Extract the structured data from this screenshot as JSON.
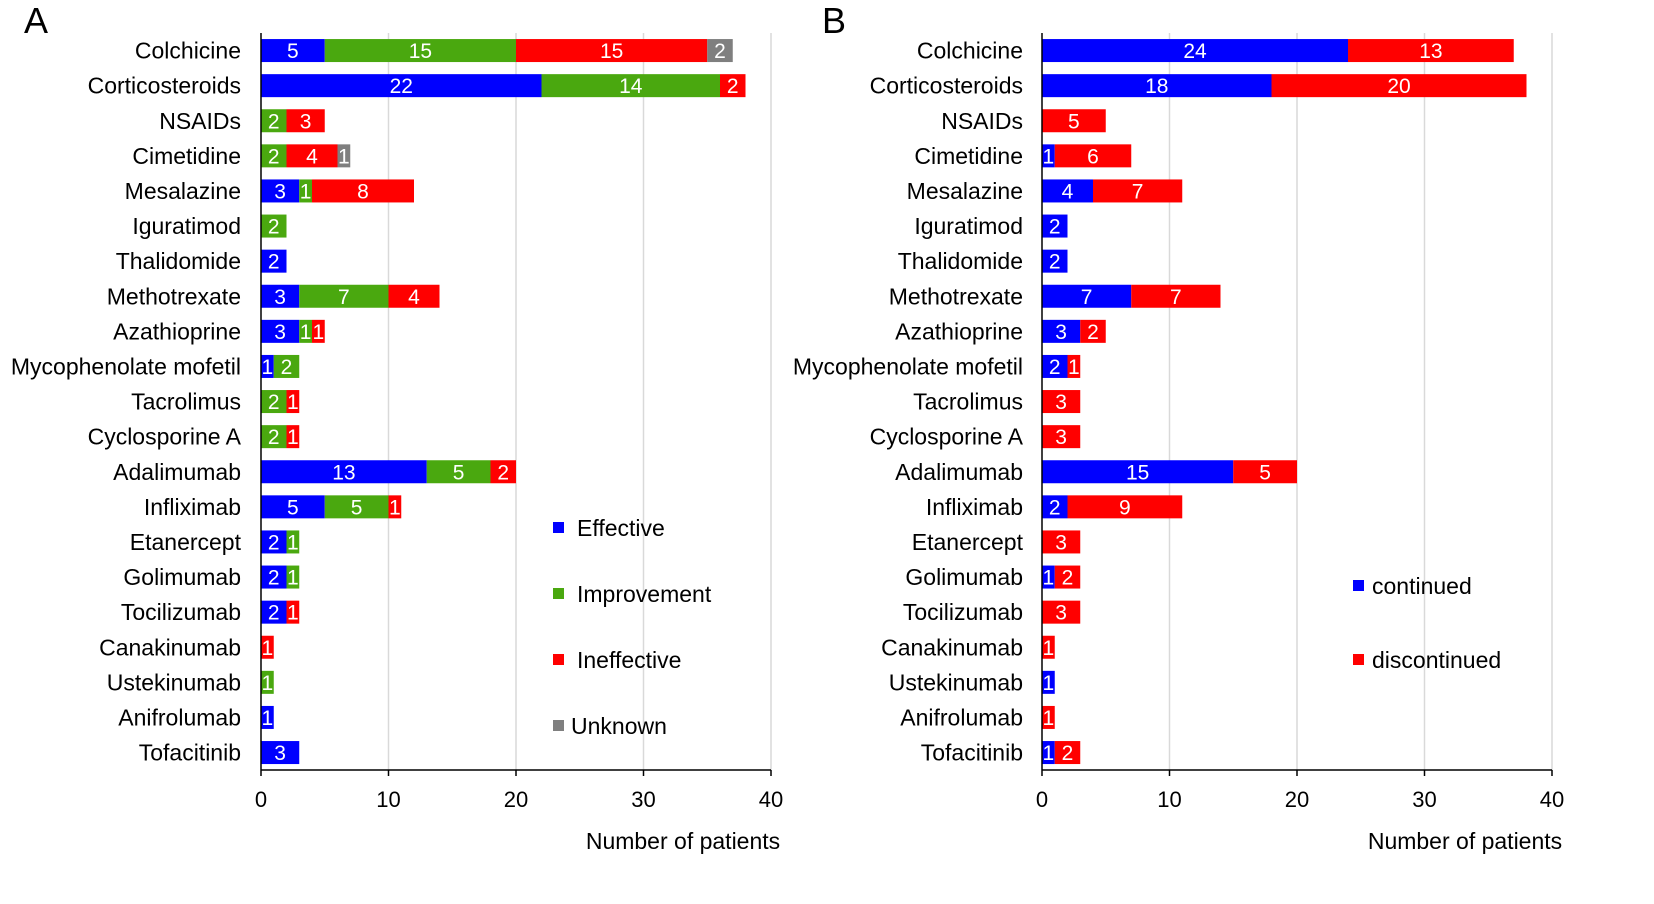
{
  "chart_data": [
    {
      "type": "bar",
      "orientation": "horizontal",
      "stacked": true,
      "panel_label": "A",
      "title": "",
      "xlabel": "Number of patients",
      "ylabel": "",
      "xlim": [
        0,
        40
      ],
      "xticks": [
        0,
        10,
        20,
        30,
        40
      ],
      "grid": true,
      "legend_position": "bottom-right",
      "categories": [
        "Colchicine",
        "Corticosteroids",
        "NSAIDs",
        "Cimetidine",
        "Mesalazine",
        "Iguratimod",
        "Thalidomide",
        "Methotrexate",
        "Azathioprine",
        "Mycophenolate mofetil",
        "Tacrolimus",
        "Cyclosporine A",
        "Adalimumab",
        "Infliximab",
        "Etanercept",
        "Golimumab",
        "Tocilizumab",
        "Canakinumab",
        "Ustekinumab",
        "Anifrolumab",
        "Tofacitinib"
      ],
      "series": [
        {
          "name": "Effective",
          "color": "#0000ff",
          "values": [
            5,
            22,
            0,
            0,
            3,
            0,
            2,
            3,
            3,
            1,
            0,
            0,
            13,
            5,
            2,
            2,
            2,
            0,
            0,
            1,
            3
          ]
        },
        {
          "name": "Improvement",
          "color": "#4aa80f",
          "values": [
            15,
            14,
            2,
            2,
            1,
            2,
            0,
            7,
            1,
            2,
            2,
            2,
            5,
            5,
            1,
            1,
            0,
            0,
            1,
            0,
            0
          ]
        },
        {
          "name": "Ineffective",
          "color": "#ff0000",
          "values": [
            15,
            2,
            3,
            4,
            8,
            0,
            0,
            4,
            1,
            0,
            1,
            1,
            2,
            1,
            0,
            0,
            1,
            1,
            0,
            0,
            0
          ]
        },
        {
          "name": "Unknown",
          "color": "#7f7f7f",
          "values": [
            2,
            0,
            0,
            1,
            0,
            0,
            0,
            0,
            0,
            0,
            0,
            0,
            0,
            0,
            0,
            0,
            0,
            0,
            0,
            0,
            0
          ]
        }
      ]
    },
    {
      "type": "bar",
      "orientation": "horizontal",
      "stacked": true,
      "panel_label": "B",
      "title": "",
      "xlabel": "Number of patients",
      "ylabel": "",
      "xlim": [
        0,
        40
      ],
      "xticks": [
        0,
        10,
        20,
        30,
        40
      ],
      "grid": true,
      "legend_position": "bottom-right",
      "categories": [
        "Colchicine",
        "Corticosteroids",
        "NSAIDs",
        "Cimetidine",
        "Mesalazine",
        "Iguratimod",
        "Thalidomide",
        "Methotrexate",
        "Azathioprine",
        "Mycophenolate mofetil",
        "Tacrolimus",
        "Cyclosporine A",
        "Adalimumab",
        "Infliximab",
        "Etanercept",
        "Golimumab",
        "Tocilizumab",
        "Canakinumab",
        "Ustekinumab",
        "Anifrolumab",
        "Tofacitinib"
      ],
      "series": [
        {
          "name": "continued",
          "color": "#0000ff",
          "values": [
            24,
            18,
            0,
            1,
            4,
            2,
            2,
            7,
            3,
            2,
            0,
            0,
            15,
            2,
            0,
            1,
            0,
            0,
            1,
            0,
            1
          ]
        },
        {
          "name": "discontinued",
          "color": "#ff0000",
          "values": [
            13,
            20,
            5,
            6,
            7,
            0,
            0,
            7,
            2,
            1,
            3,
            3,
            5,
            9,
            3,
            2,
            3,
            1,
            0,
            1,
            2
          ]
        }
      ]
    }
  ]
}
